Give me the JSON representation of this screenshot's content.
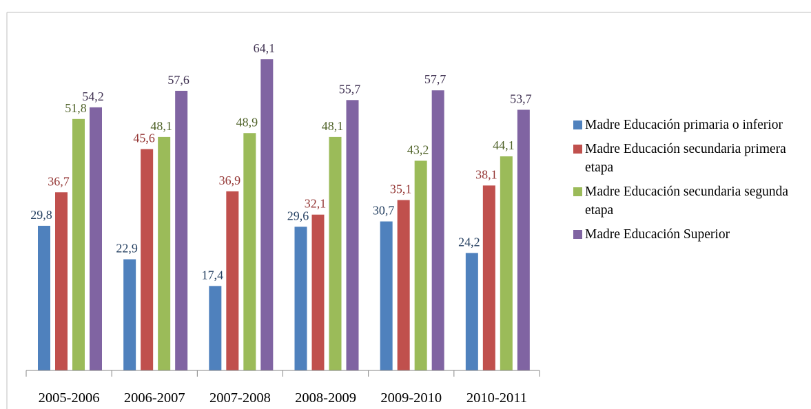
{
  "chart_data": {
    "type": "bar",
    "categories": [
      "2005-2006",
      "2006-2007",
      "2007-2008",
      "2008-2009",
      "2009-2010",
      "2010-2011"
    ],
    "series": [
      {
        "name": "Madre Educación primaria o inferior",
        "color": "#4f81bd",
        "label_color": "#254061",
        "values": [
          29.8,
          22.9,
          17.4,
          29.6,
          30.7,
          24.2
        ],
        "value_labels": [
          "29,8",
          "22,9",
          "17,4",
          "29,6",
          "30,7",
          "24,2"
        ]
      },
      {
        "name": "Madre Educación secundaria primera etapa",
        "color": "#c0504d",
        "label_color": "#943634",
        "values": [
          36.7,
          45.6,
          36.9,
          32.1,
          35.1,
          38.1
        ],
        "value_labels": [
          "36,7",
          "45,6",
          "36,9",
          "32,1",
          "35,1",
          "38,1"
        ]
      },
      {
        "name": "Madre Educación secundaria segunda etapa",
        "color": "#9bbb59",
        "label_color": "#4f6228",
        "values": [
          51.8,
          48.1,
          48.9,
          48.1,
          43.2,
          44.1
        ],
        "value_labels": [
          "51,8",
          "48,1",
          "48,9",
          "48,1",
          "43,2",
          "44,1"
        ]
      },
      {
        "name": "Madre Educación Superior",
        "color": "#8064a2",
        "label_color": "#3f3151",
        "values": [
          54.2,
          57.6,
          64.1,
          55.7,
          57.7,
          53.7
        ],
        "value_labels": [
          "54,2",
          "57,6",
          "64,1",
          "55,7",
          "57,7",
          "53,7"
        ]
      }
    ],
    "ylim": [
      0,
      70
    ],
    "legend": "right"
  }
}
